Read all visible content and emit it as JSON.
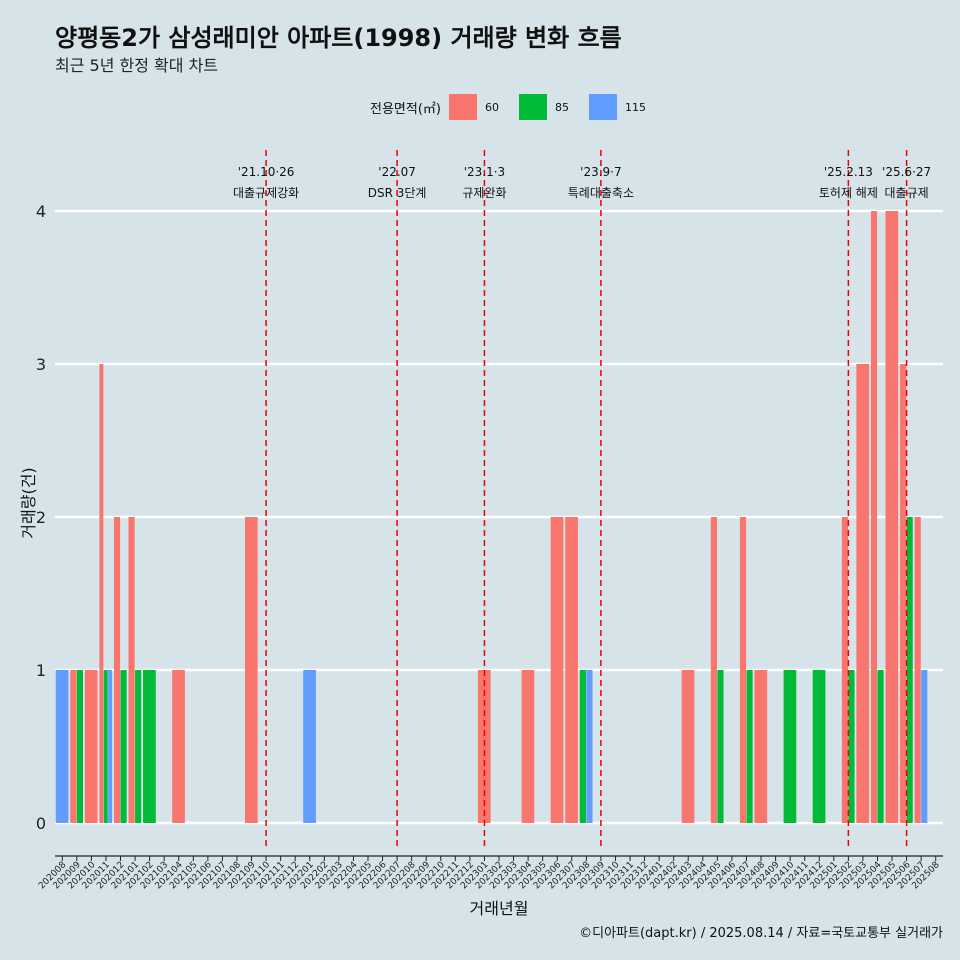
{
  "header": {
    "title": "양평동2가 삼성래미안 아파트(1998) 거래량 변화 흐름",
    "subtitle": "최근 5년 한정 확대 차트"
  },
  "legend": {
    "title": "전용면적(㎡)",
    "items": [
      {
        "label": "60",
        "color": "#f8766d"
      },
      {
        "label": "85",
        "color": "#00ba38"
      },
      {
        "label": "115",
        "color": "#619cff"
      }
    ]
  },
  "caption": "©디아파트(dapt.kr) / 2025.08.14 / 자료=국토교통부 실거래가",
  "chart_data": {
    "type": "bar",
    "xlabel": "거래년월",
    "ylabel": "거래량(건)",
    "ylim": [
      0,
      4
    ],
    "yticks": [
      0,
      1,
      2,
      3,
      4
    ],
    "grid": true,
    "legend_position": "top",
    "categories": [
      "202008",
      "202009",
      "202010",
      "202011",
      "202012",
      "202101",
      "202102",
      "202103",
      "202104",
      "202105",
      "202106",
      "202107",
      "202108",
      "202109",
      "202110",
      "202111",
      "202112",
      "202201",
      "202202",
      "202203",
      "202204",
      "202205",
      "202206",
      "202207",
      "202208",
      "202209",
      "202210",
      "202211",
      "202212",
      "202301",
      "202302",
      "202303",
      "202304",
      "202305",
      "202306",
      "202307",
      "202308",
      "202309",
      "202310",
      "202311",
      "202312",
      "202401",
      "202402",
      "202403",
      "202404",
      "202405",
      "202406",
      "202407",
      "202408",
      "202409",
      "202410",
      "202411",
      "202412",
      "202501",
      "202502",
      "202503",
      "202504",
      "202505",
      "202506",
      "202507",
      "202508"
    ],
    "series": [
      {
        "name": "60",
        "color": "#f8766d",
        "values": [
          0,
          1,
          1,
          3,
          2,
          2,
          0,
          0,
          1,
          0,
          0,
          0,
          0,
          2,
          0,
          0,
          0,
          0,
          0,
          0,
          0,
          0,
          0,
          0,
          0,
          0,
          0,
          0,
          0,
          1,
          0,
          0,
          1,
          0,
          2,
          2,
          0,
          0,
          0,
          0,
          0,
          0,
          0,
          1,
          0,
          2,
          0,
          2,
          1,
          0,
          0,
          0,
          0,
          0,
          2,
          3,
          4,
          4,
          3,
          2,
          0
        ]
      },
      {
        "name": "85",
        "color": "#00ba38",
        "values": [
          0,
          1,
          0,
          1,
          1,
          1,
          1,
          0,
          0,
          0,
          0,
          0,
          0,
          0,
          0,
          0,
          0,
          0,
          0,
          0,
          0,
          0,
          0,
          0,
          0,
          0,
          0,
          0,
          0,
          0,
          0,
          0,
          0,
          0,
          0,
          0,
          1,
          0,
          0,
          0,
          0,
          0,
          0,
          0,
          0,
          1,
          0,
          1,
          0,
          0,
          1,
          0,
          1,
          0,
          1,
          0,
          1,
          0,
          2,
          0,
          0
        ]
      },
      {
        "name": "115",
        "color": "#619cff",
        "values": [
          1,
          0,
          0,
          1,
          0,
          0,
          0,
          0,
          0,
          0,
          0,
          0,
          0,
          0,
          0,
          0,
          0,
          1,
          0,
          0,
          0,
          0,
          0,
          0,
          0,
          0,
          0,
          0,
          0,
          0,
          0,
          0,
          0,
          0,
          0,
          0,
          1,
          0,
          0,
          0,
          0,
          0,
          0,
          0,
          0,
          0,
          0,
          0,
          0,
          0,
          0,
          0,
          0,
          0,
          0,
          0,
          0,
          0,
          0,
          1,
          0
        ]
      }
    ],
    "events": [
      {
        "date": "'21.10·26",
        "label": "대출규제강화",
        "month": "202110"
      },
      {
        "date": "'22.07",
        "label": "DSR 3단계",
        "month": "202207"
      },
      {
        "date": "'23.1·3",
        "label": "규제완화",
        "month": "202301"
      },
      {
        "date": "'23.9·7",
        "label": "특례대출축소",
        "month": "202309"
      },
      {
        "date": "'25.2.13",
        "label": "토허제 해제",
        "month": "202502"
      },
      {
        "date": "'25.6·27",
        "label": "대출규제",
        "month": "202506"
      }
    ]
  }
}
